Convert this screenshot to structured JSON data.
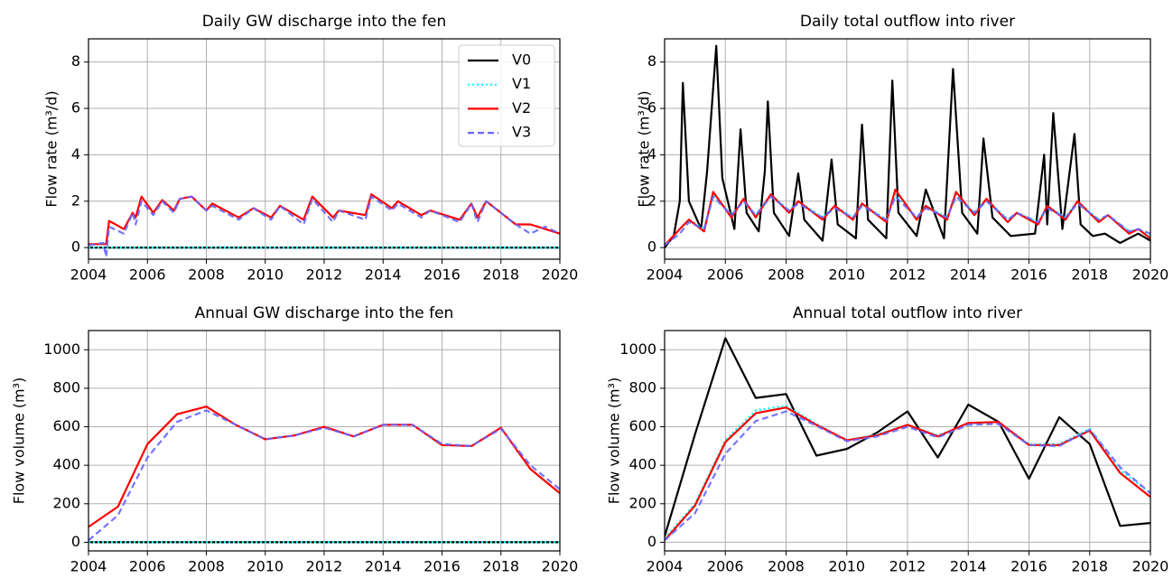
{
  "chart_data": [
    {
      "type": "line",
      "title": "Daily GW discharge into the fen",
      "ylabel": "Flow rate (m³/d)",
      "xlim": [
        2004,
        2020
      ],
      "xticks": [
        2004,
        2006,
        2008,
        2010,
        2012,
        2014,
        2016,
        2018,
        2020
      ],
      "ylim": [
        -0.5,
        9
      ],
      "yticks": [
        0,
        2,
        4,
        6,
        8
      ],
      "grid": true,
      "legend": "upper right",
      "series": [
        {
          "name": "V0",
          "color": "#000000",
          "linestyle": "solid",
          "x": [
            2004,
            2020
          ],
          "values": [
            0,
            0
          ]
        },
        {
          "name": "V1",
          "color": "#00ffff",
          "linestyle": "dotted",
          "x": [
            2004,
            2020
          ],
          "values": [
            0,
            0
          ]
        },
        {
          "name": "V2",
          "color": "#ff0000",
          "linestyle": "solid",
          "x": [
            2004,
            2004.6,
            2004.7,
            2005.2,
            2005.5,
            2005.6,
            2005.8,
            2006.2,
            2006.5,
            2006.9,
            2007.1,
            2007.5,
            2008,
            2008.2,
            2009.1,
            2009.6,
            2010.2,
            2010.5,
            2011.3,
            2011.6,
            2012.3,
            2012.5,
            2013.4,
            2013.6,
            2014.3,
            2014.5,
            2015.3,
            2015.6,
            2016.6,
            2017,
            2017.2,
            2017.5,
            2018.5,
            2019,
            2020
          ],
          "values": [
            0.15,
            0.15,
            1.15,
            0.8,
            1.5,
            1.3,
            2.2,
            1.5,
            2.05,
            1.6,
            2.1,
            2.2,
            1.6,
            1.9,
            1.3,
            1.7,
            1.3,
            1.8,
            1.2,
            2.2,
            1.3,
            1.6,
            1.4,
            2.3,
            1.7,
            2.0,
            1.4,
            1.6,
            1.2,
            1.9,
            1.3,
            2.0,
            1.0,
            1.0,
            0.6
          ]
        },
        {
          "name": "V3",
          "color": "#6666ff",
          "linestyle": "dashed",
          "x": [
            2004,
            2004.5,
            2004.6,
            2004.7,
            2005.2,
            2005.5,
            2005.6,
            2005.8,
            2006.2,
            2006.5,
            2006.9,
            2007.1,
            2007.5,
            2008,
            2008.2,
            2009.1,
            2009.6,
            2010.2,
            2010.5,
            2011.3,
            2011.6,
            2012.3,
            2012.5,
            2013.4,
            2013.6,
            2014.3,
            2014.5,
            2015.3,
            2015.6,
            2016.6,
            2017,
            2017.2,
            2017.5,
            2018.5,
            2019,
            2019.5,
            2020
          ],
          "values": [
            0.1,
            0.2,
            -0.4,
            0.9,
            0.6,
            1.5,
            1.0,
            2.0,
            1.4,
            2.0,
            1.5,
            2.1,
            2.2,
            1.6,
            1.8,
            1.2,
            1.7,
            1.2,
            1.8,
            1.0,
            2.1,
            1.1,
            1.6,
            1.2,
            2.2,
            1.6,
            1.9,
            1.3,
            1.6,
            1.1,
            1.9,
            1.1,
            2.0,
            1.0,
            0.6,
            0.9,
            0.6
          ]
        }
      ]
    },
    {
      "type": "line",
      "title": "Daily total outflow into river",
      "ylabel": "Flow rate (m³/d)",
      "xlim": [
        2004,
        2020
      ],
      "xticks": [
        2004,
        2006,
        2008,
        2010,
        2012,
        2014,
        2016,
        2018,
        2020
      ],
      "ylim": [
        -0.5,
        9
      ],
      "yticks": [
        0,
        2,
        4,
        6,
        8
      ],
      "grid": true,
      "series": [
        {
          "color": "#000000",
          "linestyle": "solid",
          "x": [
            2004,
            2004.3,
            2004.5,
            2004.6,
            2004.8,
            2005.2,
            2005.4,
            2005.7,
            2005.9,
            2006.3,
            2006.5,
            2006.7,
            2007.1,
            2007.3,
            2007.4,
            2007.6,
            2008.1,
            2008.4,
            2008.6,
            2009.2,
            2009.5,
            2009.7,
            2010.3,
            2010.5,
            2010.7,
            2011.3,
            2011.5,
            2011.7,
            2012.3,
            2012.6,
            2013.2,
            2013.5,
            2013.8,
            2014.3,
            2014.5,
            2014.8,
            2015.4,
            2016.2,
            2016.5,
            2016.6,
            2016.8,
            2017.1,
            2017.5,
            2017.7,
            2018.1,
            2018.5,
            2019,
            2019.6,
            2020
          ],
          "values": [
            0,
            0.5,
            2,
            7.1,
            2,
            0.8,
            3.3,
            8.7,
            3,
            0.8,
            5.1,
            1.5,
            0.7,
            3.3,
            6.3,
            1.5,
            0.5,
            3.2,
            1.2,
            0.3,
            3.8,
            1.0,
            0.4,
            5.3,
            1.2,
            0.4,
            7.2,
            1.5,
            0.5,
            2.5,
            0.4,
            7.7,
            1.5,
            0.6,
            4.7,
            1.3,
            0.5,
            0.6,
            4.0,
            1.0,
            5.8,
            0.8,
            4.9,
            1.0,
            0.5,
            0.6,
            0.2,
            0.6,
            0.3
          ]
        },
        {
          "color": "#00ffff",
          "linestyle": "dotted",
          "x": [
            2004,
            2004.5,
            2004.8,
            2005.3,
            2005.6,
            2006.2,
            2006.6,
            2007.0,
            2007.5,
            2008.1,
            2008.4,
            2009.2,
            2009.6,
            2010.2,
            2010.5,
            2011.3,
            2011.6,
            2012.3,
            2012.6,
            2013.3,
            2013.6,
            2014.2,
            2014.6,
            2015.3,
            2015.6,
            2016.3,
            2016.6,
            2017.2,
            2017.6,
            2018.3,
            2018.6,
            2019.3,
            2019.6,
            2020
          ],
          "values": [
            0.1,
            0.8,
            1.2,
            0.8,
            2.3,
            1.4,
            2.0,
            1.4,
            2.3,
            1.6,
            2.0,
            1.3,
            1.8,
            1.3,
            1.9,
            1.2,
            2.3,
            1.3,
            1.8,
            1.3,
            2.3,
            1.5,
            2.1,
            1.2,
            1.5,
            1.1,
            1.8,
            1.3,
            2.0,
            1.2,
            1.4,
            0.7,
            0.8,
            0.5
          ]
        },
        {
          "color": "#ff0000",
          "linestyle": "solid",
          "x": [
            2004,
            2004.5,
            2004.8,
            2005.3,
            2005.6,
            2006.2,
            2006.6,
            2007.0,
            2007.5,
            2008.1,
            2008.4,
            2009.2,
            2009.6,
            2010.2,
            2010.5,
            2011.3,
            2011.6,
            2012.3,
            2012.6,
            2013.3,
            2013.6,
            2014.2,
            2014.6,
            2015.3,
            2015.6,
            2016.3,
            2016.6,
            2017.2,
            2017.6,
            2018.3,
            2018.6,
            2019.3,
            2019.6,
            2020
          ],
          "values": [
            0.1,
            0.8,
            1.2,
            0.7,
            2.4,
            1.3,
            2.1,
            1.3,
            2.3,
            1.5,
            2.0,
            1.2,
            1.8,
            1.2,
            1.9,
            1.1,
            2.5,
            1.2,
            1.8,
            1.2,
            2.4,
            1.4,
            2.1,
            1.1,
            1.5,
            1.0,
            1.8,
            1.2,
            2.0,
            1.1,
            1.4,
            0.6,
            0.8,
            0.4
          ]
        },
        {
          "color": "#6666ff",
          "linestyle": "dashed",
          "x": [
            2004,
            2004.5,
            2004.8,
            2005.3,
            2005.6,
            2006.2,
            2006.6,
            2007.0,
            2007.5,
            2008.1,
            2008.4,
            2009.2,
            2009.6,
            2010.2,
            2010.5,
            2011.3,
            2011.6,
            2012.3,
            2012.6,
            2013.3,
            2013.6,
            2014.2,
            2014.6,
            2015.3,
            2015.6,
            2016.3,
            2016.6,
            2017.2,
            2017.6,
            2018.3,
            2018.6,
            2019.3,
            2019.6,
            2020
          ],
          "values": [
            0.1,
            0.6,
            1.1,
            0.8,
            2.2,
            1.4,
            2.0,
            1.4,
            2.2,
            1.6,
            1.9,
            1.3,
            1.7,
            1.3,
            1.8,
            1.2,
            2.2,
            1.3,
            1.7,
            1.3,
            2.2,
            1.5,
            2.0,
            1.2,
            1.5,
            1.1,
            1.7,
            1.3,
            1.9,
            1.2,
            1.4,
            0.7,
            0.8,
            0.6
          ]
        }
      ]
    },
    {
      "type": "line",
      "title": "Annual GW discharge into the fen",
      "ylabel": "Flow volume (m³)",
      "x": [
        2004,
        2005,
        2006,
        2007,
        2008,
        2009,
        2010,
        2011,
        2012,
        2013,
        2014,
        2015,
        2016,
        2017,
        2018,
        2019,
        2020
      ],
      "xlim": [
        2004,
        2020
      ],
      "xticks": [
        2004,
        2006,
        2008,
        2010,
        2012,
        2014,
        2016,
        2018,
        2020
      ],
      "ylim": [
        -45,
        1100
      ],
      "yticks": [
        0,
        200,
        400,
        600,
        800,
        1000
      ],
      "grid": true,
      "series": [
        {
          "color": "#000000",
          "linestyle": "solid",
          "values": [
            0,
            0,
            0,
            0,
            0,
            0,
            0,
            0,
            0,
            0,
            0,
            0,
            0,
            0,
            0,
            0,
            0
          ]
        },
        {
          "color": "#00ffff",
          "linestyle": "dotted",
          "values": [
            0,
            0,
            0,
            0,
            0,
            0,
            0,
            0,
            0,
            0,
            0,
            0,
            0,
            0,
            0,
            0,
            0
          ]
        },
        {
          "color": "#ff0000",
          "linestyle": "solid",
          "values": [
            80,
            185,
            510,
            665,
            705,
            610,
            535,
            555,
            600,
            550,
            610,
            610,
            505,
            500,
            595,
            380,
            255
          ]
        },
        {
          "color": "#6666ff",
          "linestyle": "dashed",
          "values": [
            10,
            140,
            440,
            625,
            685,
            610,
            535,
            555,
            595,
            550,
            610,
            610,
            510,
            500,
            590,
            400,
            275
          ]
        }
      ]
    },
    {
      "type": "line",
      "title": "Annual total outflow into river",
      "ylabel": "Flow volume (m³)",
      "x": [
        2004,
        2005,
        2006,
        2007,
        2008,
        2009,
        2010,
        2011,
        2012,
        2013,
        2014,
        2015,
        2016,
        2017,
        2018,
        2019,
        2020
      ],
      "xlim": [
        2004,
        2020
      ],
      "xticks": [
        2004,
        2006,
        2008,
        2010,
        2012,
        2014,
        2016,
        2018,
        2020
      ],
      "ylim": [
        -45,
        1100
      ],
      "yticks": [
        0,
        200,
        400,
        600,
        800,
        1000
      ],
      "grid": true,
      "series": [
        {
          "color": "#000000",
          "linestyle": "solid",
          "values": [
            30,
            560,
            1060,
            750,
            770,
            450,
            485,
            570,
            680,
            440,
            715,
            625,
            330,
            650,
            510,
            85,
            100
          ]
        },
        {
          "color": "#00ffff",
          "linestyle": "dotted",
          "values": [
            20,
            200,
            530,
            685,
            710,
            615,
            530,
            560,
            610,
            555,
            615,
            625,
            510,
            510,
            590,
            375,
            255
          ]
        },
        {
          "color": "#ff0000",
          "linestyle": "solid",
          "values": [
            10,
            190,
            520,
            670,
            700,
            610,
            530,
            555,
            610,
            550,
            620,
            625,
            505,
            505,
            580,
            360,
            235
          ]
        },
        {
          "color": "#6666ff",
          "linestyle": "dashed",
          "values": [
            10,
            150,
            460,
            630,
            680,
            605,
            525,
            550,
            600,
            545,
            610,
            615,
            505,
            500,
            585,
            390,
            255
          ]
        }
      ]
    }
  ]
}
